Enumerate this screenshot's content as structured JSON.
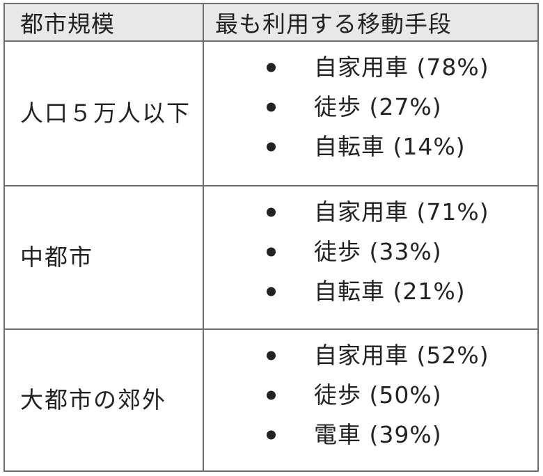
{
  "table": {
    "headers": [
      "都市規模",
      "最も利用する移動手段"
    ],
    "rows": [
      {
        "city": "人口５万人以下",
        "items": [
          "自家用車 (78%)",
          "徒歩 (27%)",
          "自転車 (14%)"
        ]
      },
      {
        "city": "中都市",
        "items": [
          "自家用車 (71%)",
          "徒歩 (33%)",
          "自転車 (21%)"
        ]
      },
      {
        "city": "大都市の郊外",
        "items": [
          "自家用車 (52%)",
          "徒歩 (50%)",
          "電車 (39%)"
        ]
      }
    ]
  }
}
